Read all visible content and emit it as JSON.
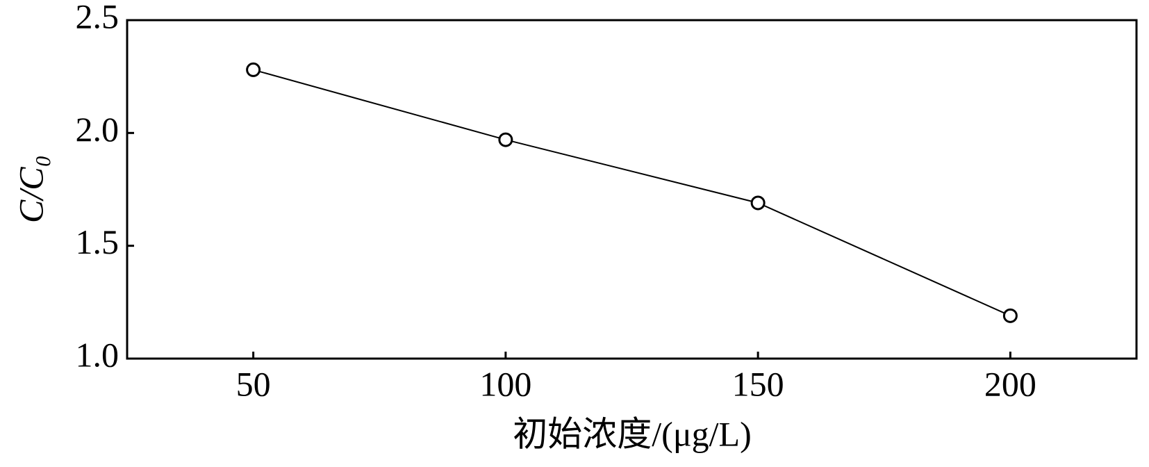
{
  "chart_data": {
    "type": "line",
    "x_label": "初始浓度/(μg/L)",
    "y_label": "C/C₀",
    "x": [
      50,
      100,
      150,
      200
    ],
    "series": [
      {
        "color": "#000000",
        "values": [
          2.28,
          1.97,
          1.69,
          1.19
        ]
      }
    ],
    "xlim": [
      25,
      225
    ],
    "xticks": [
      50,
      100,
      150,
      200
    ],
    "ylim": [
      1.0,
      2.5
    ],
    "yticks": [
      {
        "value": 1.0,
        "label": "1.0"
      },
      1.5,
      {
        "value": 2.0,
        "label": "2.0"
      },
      2.5
    ],
    "grid": false
  }
}
